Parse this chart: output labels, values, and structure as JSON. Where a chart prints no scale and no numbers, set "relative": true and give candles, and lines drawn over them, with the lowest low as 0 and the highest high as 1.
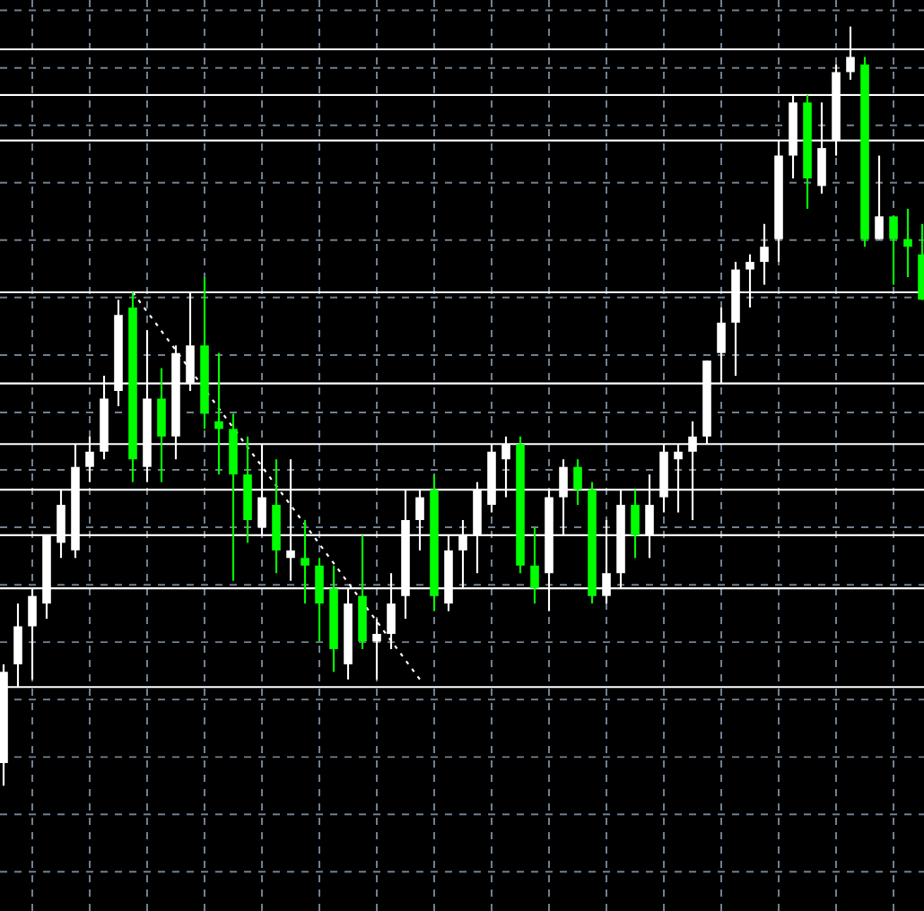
{
  "chart_data": {
    "type": "candlestick",
    "relative": true,
    "grid": true,
    "categories": [
      null,
      null,
      null,
      null,
      null,
      null,
      null,
      null,
      null,
      null,
      null,
      null,
      null,
      null,
      null,
      null,
      null,
      null,
      null,
      null,
      null,
      null,
      null,
      null,
      null,
      null,
      null,
      null,
      null,
      null,
      null,
      null,
      null,
      null,
      null,
      null,
      null,
      null,
      null,
      null,
      null,
      null,
      null,
      null,
      null,
      null,
      null,
      null,
      null,
      null,
      null,
      null,
      null,
      null,
      null,
      null,
      null,
      null,
      null,
      null,
      null,
      null,
      null,
      null,
      null
    ],
    "ohlc": [
      [
        0.03,
        0.16,
        0,
        0.15
      ],
      [
        0.16,
        0.24,
        0.13,
        0.21
      ],
      [
        0.21,
        0.26,
        0.14,
        0.25
      ],
      [
        0.24,
        0.33,
        0.22,
        0.33
      ],
      [
        0.32,
        0.39,
        0.3,
        0.37
      ],
      [
        0.31,
        0.45,
        0.3,
        0.42
      ],
      [
        0.42,
        0.46,
        0.4,
        0.44
      ],
      [
        0.44,
        0.54,
        0.43,
        0.51
      ],
      [
        0.52,
        0.64,
        0.5,
        0.62
      ],
      [
        0.63,
        0.65,
        0.4,
        0.43
      ],
      [
        0.42,
        0.6,
        0.4,
        0.51
      ],
      [
        0.51,
        0.55,
        0.4,
        0.46
      ],
      [
        0.46,
        0.58,
        0.43,
        0.57
      ],
      [
        0.53,
        0.65,
        0.52,
        0.58
      ],
      [
        0.58,
        0.67,
        0.47,
        0.49
      ],
      [
        0.48,
        0.57,
        0.41,
        0.47
      ],
      [
        0.47,
        0.49,
        0.27,
        0.41
      ],
      [
        0.41,
        0.46,
        0.32,
        0.35
      ],
      [
        0.34,
        0.45,
        0.33,
        0.38
      ],
      [
        0.37,
        0.43,
        0.28,
        0.31
      ],
      [
        0.3,
        0.43,
        0.27,
        0.31
      ],
      [
        0.3,
        0.35,
        0.24,
        0.29
      ],
      [
        0.29,
        0.3,
        0.19,
        0.24
      ],
      [
        0.26,
        0.29,
        0.15,
        0.18
      ],
      [
        0.16,
        0.26,
        0.14,
        0.24
      ],
      [
        0.25,
        0.33,
        0.18,
        0.19
      ],
      [
        0.19,
        0.22,
        0.14,
        0.2
      ],
      [
        0.2,
        0.28,
        0.18,
        0.24
      ],
      [
        0.25,
        0.39,
        0.22,
        0.35
      ],
      [
        0.35,
        0.39,
        0.31,
        0.38
      ],
      [
        0.39,
        0.41,
        0.23,
        0.25
      ],
      [
        0.24,
        0.33,
        0.23,
        0.31
      ],
      [
        0.31,
        0.35,
        0.26,
        0.33
      ],
      [
        0.33,
        0.4,
        0.28,
        0.39
      ],
      [
        0.37,
        0.45,
        0.36,
        0.44
      ],
      [
        0.43,
        0.46,
        0.38,
        0.45
      ],
      [
        0.45,
        0.46,
        0.28,
        0.29
      ],
      [
        0.29,
        0.34,
        0.24,
        0.26
      ],
      [
        0.28,
        0.39,
        0.23,
        0.38
      ],
      [
        0.38,
        0.43,
        0.33,
        0.42
      ],
      [
        0.42,
        0.43,
        0.37,
        0.39
      ],
      [
        0.39,
        0.4,
        0.24,
        0.25
      ],
      [
        0.25,
        0.35,
        0.24,
        0.28
      ],
      [
        0.28,
        0.39,
        0.26,
        0.37
      ],
      [
        0.37,
        0.39,
        0.3,
        0.33
      ],
      [
        0.33,
        0.41,
        0.3,
        0.37
      ],
      [
        0.38,
        0.45,
        0.36,
        0.44
      ],
      [
        0.43,
        0.45,
        0.36,
        0.44
      ],
      [
        0.44,
        0.48,
        0.35,
        0.46
      ],
      [
        0.46,
        0.56,
        0.45,
        0.56
      ],
      [
        0.57,
        0.63,
        0.53,
        0.61
      ],
      [
        0.61,
        0.69,
        0.54,
        0.68
      ],
      [
        0.68,
        0.7,
        0.63,
        0.69
      ],
      [
        0.69,
        0.74,
        0.66,
        0.71
      ],
      [
        0.72,
        0.85,
        0.69,
        0.83
      ],
      [
        0.83,
        0.91,
        0.8,
        0.9
      ],
      [
        0.9,
        0.91,
        0.76,
        0.8
      ],
      [
        0.79,
        0.9,
        0.78,
        0.84
      ],
      [
        0.85,
        0.95,
        0.83,
        0.94
      ],
      [
        0.94,
        1,
        0.93,
        0.96
      ],
      [
        0.95,
        0.96,
        0.71,
        0.72
      ],
      [
        0.72,
        0.83,
        0.72,
        0.75
      ],
      [
        0.75,
        0.75,
        0.66,
        0.72
      ],
      [
        0.72,
        0.76,
        0.67,
        0.71
      ],
      [
        0.7,
        0.74,
        0.64,
        0.64
      ]
    ],
    "colors": [
      "#ffffff",
      "#ffffff",
      "#ffffff",
      "#ffffff",
      "#ffffff",
      "#ffffff",
      "#ffffff",
      "#ffffff",
      "#ffffff",
      "#00ff00",
      "#ffffff",
      "#00ff00",
      "#ffffff",
      "#ffffff",
      "#00ff00",
      "#00ff00",
      "#00ff00",
      "#00ff00",
      "#ffffff",
      "#00ff00",
      "#ffffff",
      "#00ff00",
      "#00ff00",
      "#00ff00",
      "#ffffff",
      "#00ff00",
      "#ffffff",
      "#ffffff",
      "#ffffff",
      "#ffffff",
      "#00ff00",
      "#ffffff",
      "#ffffff",
      "#ffffff",
      "#ffffff",
      "#ffffff",
      "#00ff00",
      "#00ff00",
      "#ffffff",
      "#ffffff",
      "#00ff00",
      "#00ff00",
      "#ffffff",
      "#ffffff",
      "#00ff00",
      "#ffffff",
      "#ffffff",
      "#ffffff",
      "#ffffff",
      "#ffffff",
      "#ffffff",
      "#ffffff",
      "#ffffff",
      "#ffffff",
      "#ffffff",
      "#ffffff",
      "#00ff00",
      "#ffffff",
      "#ffffff",
      "#ffffff",
      "#00ff00",
      "#ffffff",
      "#00ff00",
      "#00ff00",
      "#00ff00"
    ],
    "series": [
      {
        "type": "line",
        "values": [
          null,
          null,
          null,
          null,
          null,
          null,
          null,
          null,
          null,
          0.65,
          null,
          null,
          null,
          null,
          null,
          null,
          null,
          null,
          null,
          null,
          null,
          null,
          null,
          null,
          null,
          null,
          null,
          null,
          null,
          0.14,
          null,
          null,
          null,
          null,
          null,
          null,
          null,
          null,
          null,
          null,
          null,
          null,
          null,
          null,
          null,
          null,
          null,
          null,
          null,
          null,
          null,
          null,
          null,
          null,
          null,
          null,
          null,
          null,
          null,
          null,
          null,
          null,
          null,
          null,
          null
        ],
        "color": "#ffffff",
        "line_style": "dotted"
      }
    ],
    "ref_lines": [
      {
        "axis": "y",
        "value": 0.97,
        "color": "#ffffff"
      },
      {
        "axis": "y",
        "value": 0.91,
        "color": "#ffffff"
      },
      {
        "axis": "y",
        "value": 0.85,
        "color": "#ffffff"
      },
      {
        "axis": "y",
        "value": 0.65,
        "color": "#ffffff"
      },
      {
        "axis": "y",
        "value": 0.53,
        "color": "#ffffff"
      },
      {
        "axis": "y",
        "value": 0.45,
        "color": "#ffffff"
      },
      {
        "axis": "y",
        "value": 0.39,
        "color": "#ffffff"
      },
      {
        "axis": "y",
        "value": 0.33,
        "color": "#ffffff"
      },
      {
        "axis": "y",
        "value": 0.26,
        "color": "#ffffff"
      },
      {
        "axis": "y",
        "value": 0.13,
        "color": "#ffffff"
      }
    ]
  }
}
